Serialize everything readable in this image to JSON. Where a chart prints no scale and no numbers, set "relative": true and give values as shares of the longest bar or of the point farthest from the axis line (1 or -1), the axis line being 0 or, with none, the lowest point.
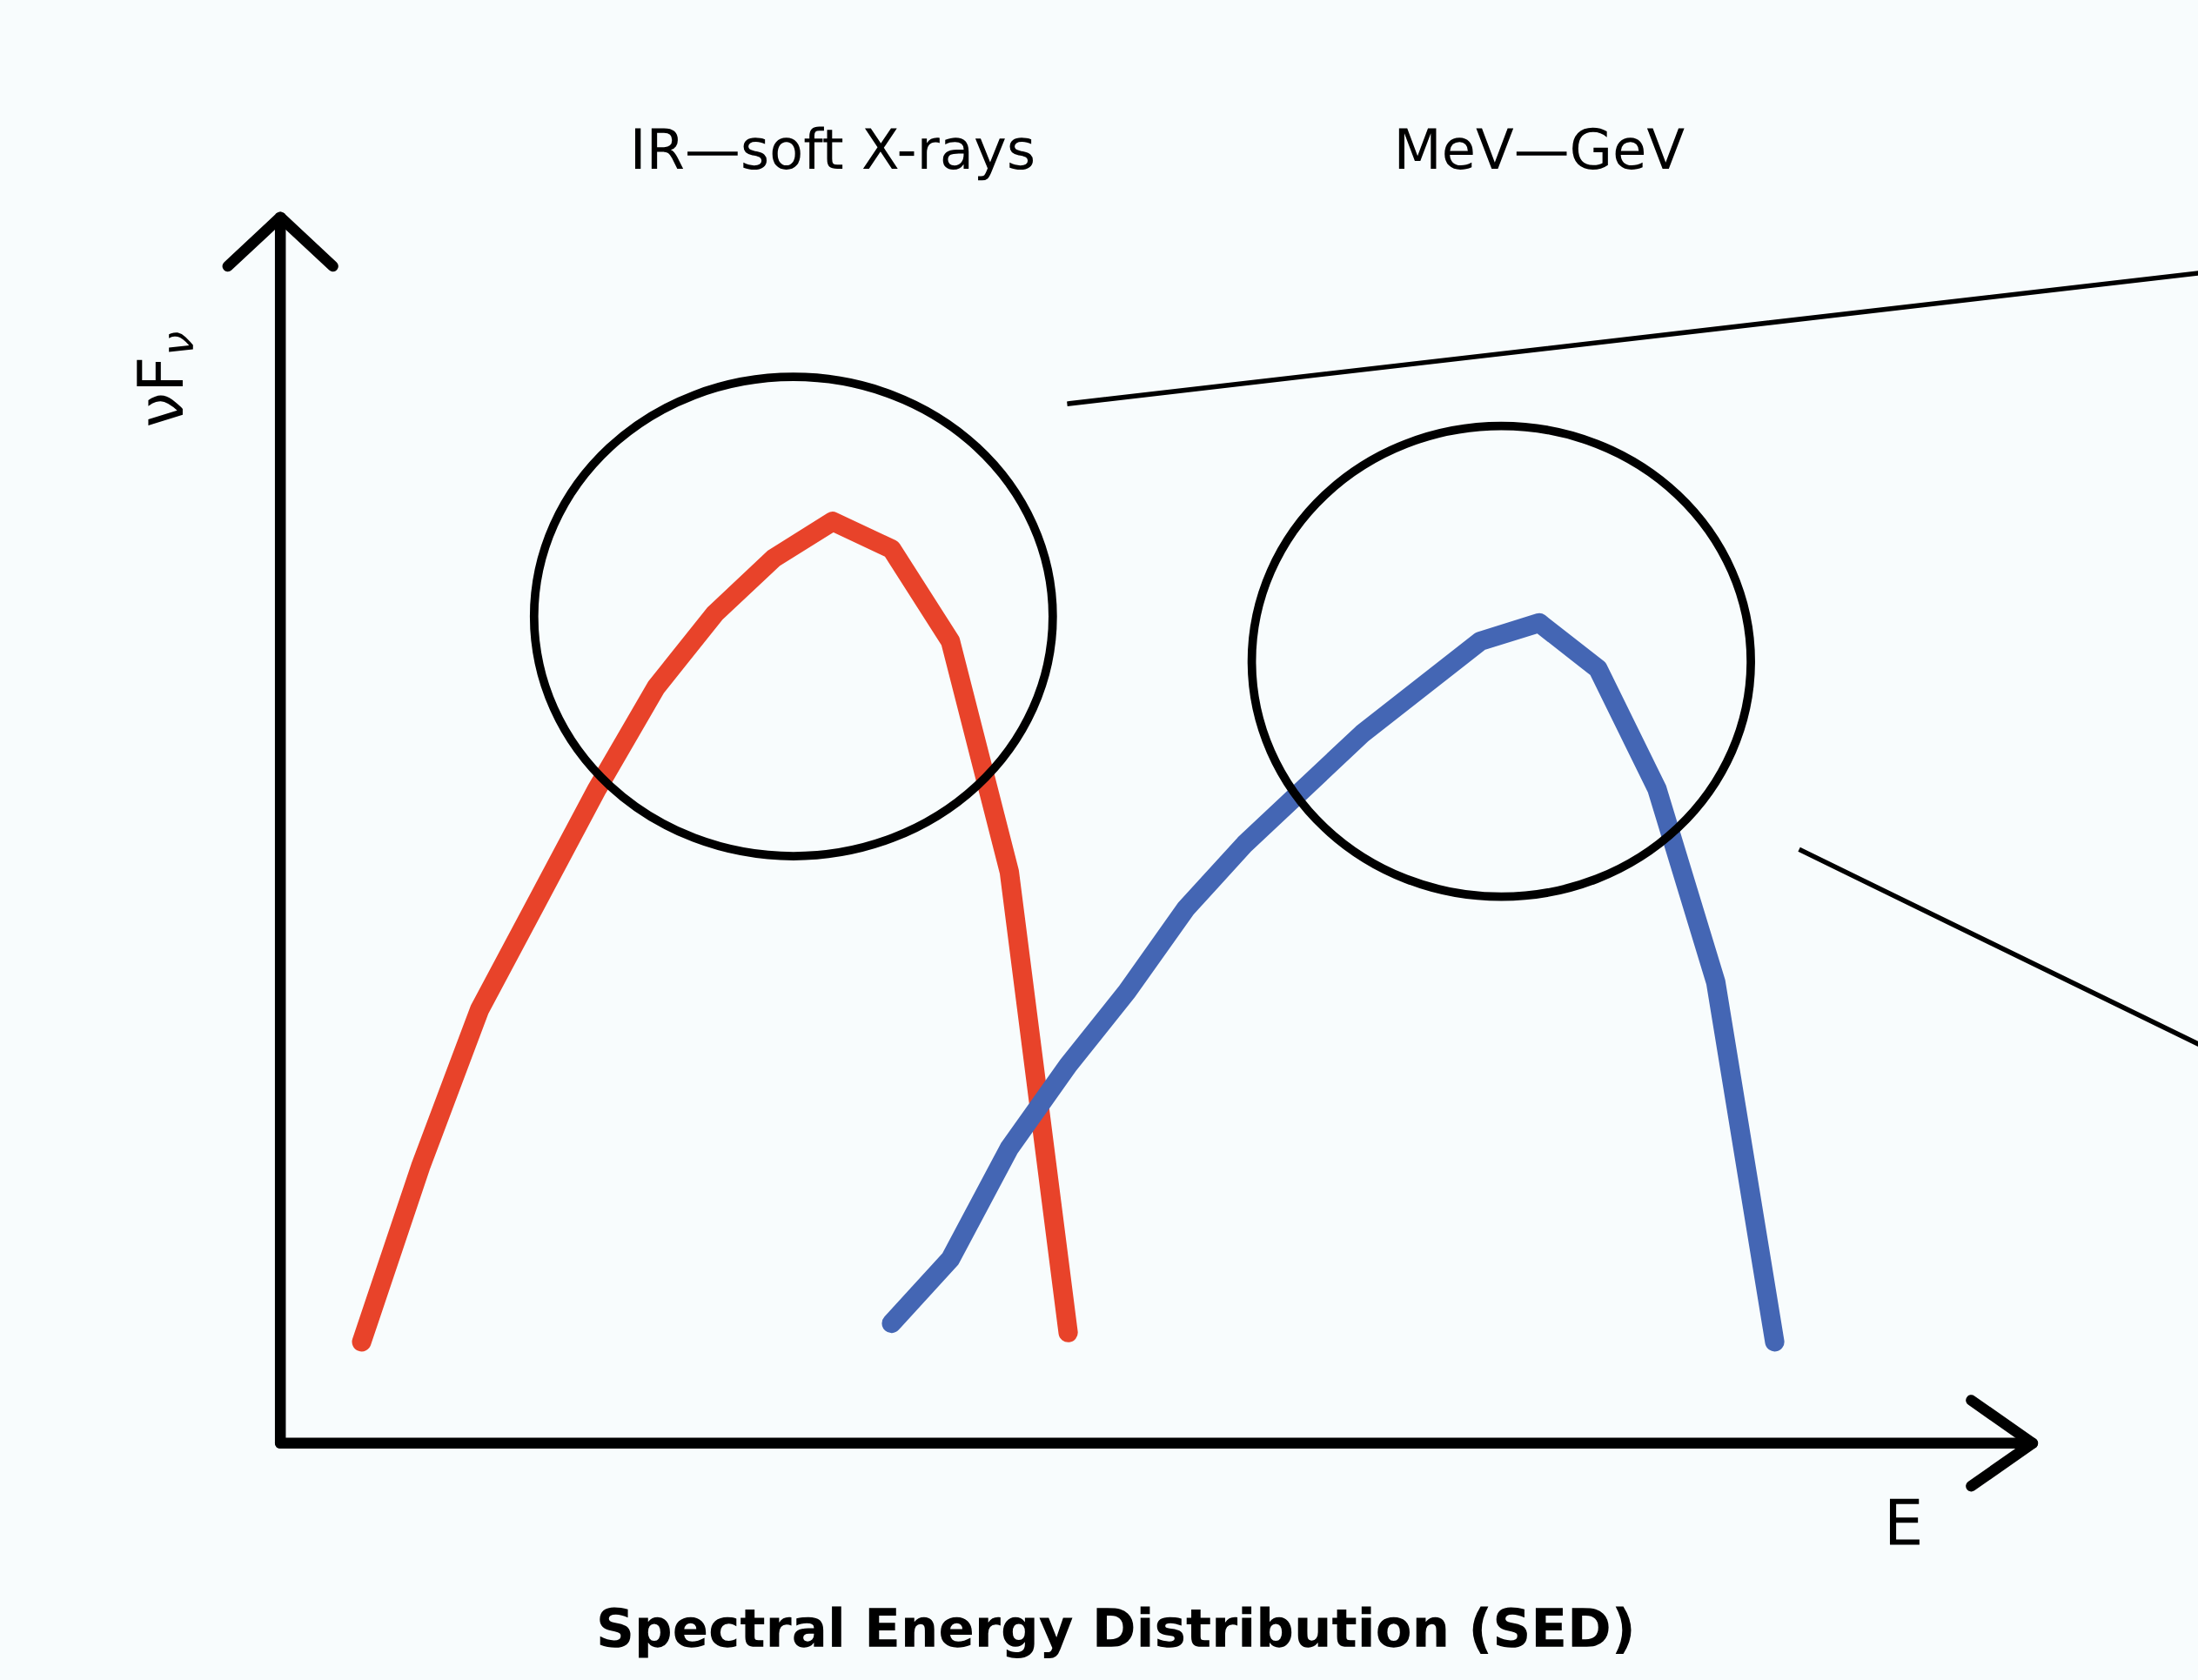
{
  "chart_data": {
    "type": "line",
    "relative": true,
    "title": "Spectral Energy Distribution (SED)",
    "xlabel": "E",
    "ylabel": "νF$_{ν}$",
    "categories": [
      null,
      null,
      null,
      null,
      null,
      null,
      null,
      null,
      null,
      null,
      null,
      null,
      null,
      null,
      null,
      null,
      null,
      null,
      null,
      null,
      null,
      null,
      null,
      null,
      null
    ],
    "series": [
      {
        "color": "#e8432a",
        "values": [
          0.11,
          0.3,
          0.47,
          0.59,
          0.71,
          0.82,
          0.9,
          0.96,
          1.0,
          0.97,
          0.87,
          0.62,
          0.12,
          null,
          null,
          null,
          null,
          null,
          null,
          null,
          null,
          null,
          null,
          null,
          null
        ]
      },
      {
        "color": "#4466b4",
        "values": [
          null,
          null,
          null,
          null,
          null,
          null,
          null,
          null,
          null,
          0.13,
          0.2,
          0.32,
          0.41,
          0.49,
          0.58,
          0.65,
          0.71,
          0.77,
          0.82,
          0.87,
          0.89,
          0.84,
          0.71,
          0.5,
          0.11
        ]
      }
    ],
    "annotations": [
      "IR—soft X-rays",
      "MeV—GeV"
    ],
    "line_style": "solid"
  }
}
